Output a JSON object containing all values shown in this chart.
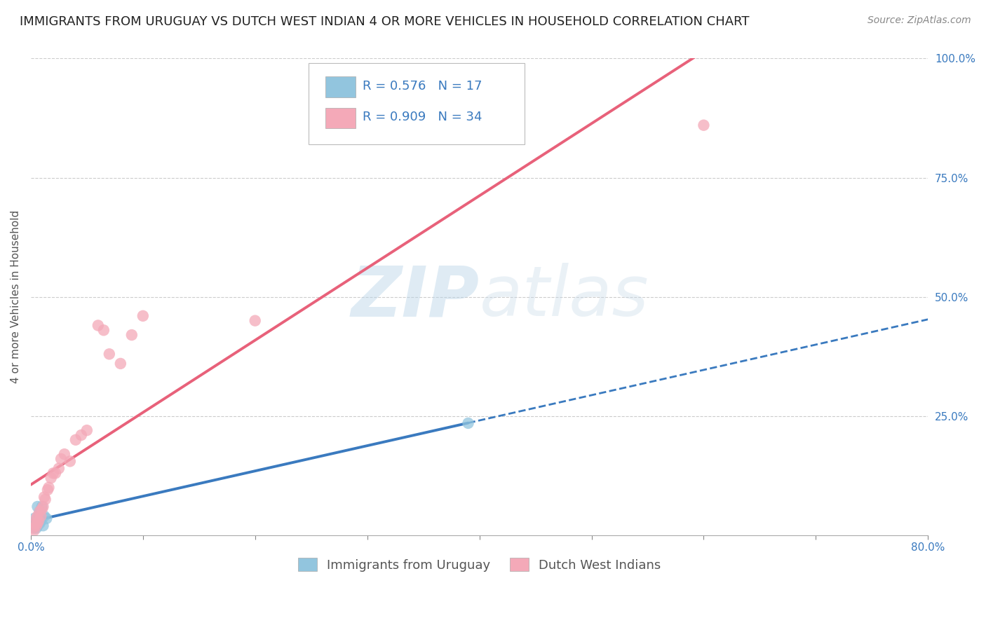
{
  "title": "IMMIGRANTS FROM URUGUAY VS DUTCH WEST INDIAN 4 OR MORE VEHICLES IN HOUSEHOLD CORRELATION CHART",
  "source": "Source: ZipAtlas.com",
  "ylabel": "4 or more Vehicles in Household",
  "xlim": [
    0.0,
    0.8
  ],
  "ylim": [
    0.0,
    1.0
  ],
  "xticks": [
    0.0,
    0.1,
    0.2,
    0.3,
    0.4,
    0.5,
    0.6,
    0.7,
    0.8
  ],
  "xticklabels": [
    "0.0%",
    "",
    "",
    "",
    "",
    "",
    "",
    "",
    "80.0%"
  ],
  "yticks": [
    0.0,
    0.25,
    0.5,
    0.75,
    1.0
  ],
  "yticklabels": [
    "",
    "25.0%",
    "50.0%",
    "75.0%",
    "100.0%"
  ],
  "blue_color": "#92c5de",
  "pink_color": "#f4a9b8",
  "blue_line_color": "#3a7abf",
  "pink_line_color": "#e8617a",
  "blue_r": 0.576,
  "blue_n": 17,
  "pink_r": 0.909,
  "pink_n": 34,
  "legend_label_blue": "Immigrants from Uruguay",
  "legend_label_pink": "Dutch West Indians",
  "watermark_zip": "ZIP",
  "watermark_atlas": "atlas",
  "background_color": "#ffffff",
  "grid_color": "#cccccc",
  "title_fontsize": 13,
  "axis_label_fontsize": 11,
  "tick_fontsize": 11,
  "legend_fontsize": 13,
  "blue_scatter_x": [
    0.002,
    0.003,
    0.003,
    0.004,
    0.005,
    0.005,
    0.006,
    0.006,
    0.007,
    0.008,
    0.008,
    0.009,
    0.01,
    0.011,
    0.012,
    0.014,
    0.39
  ],
  "blue_scatter_y": [
    0.02,
    0.035,
    0.015,
    0.025,
    0.03,
    0.015,
    0.02,
    0.06,
    0.04,
    0.025,
    0.05,
    0.03,
    0.06,
    0.02,
    0.04,
    0.035,
    0.235
  ],
  "pink_scatter_x": [
    0.002,
    0.003,
    0.004,
    0.005,
    0.005,
    0.006,
    0.006,
    0.007,
    0.008,
    0.009,
    0.01,
    0.011,
    0.012,
    0.013,
    0.015,
    0.016,
    0.018,
    0.02,
    0.022,
    0.025,
    0.027,
    0.03,
    0.035,
    0.04,
    0.045,
    0.05,
    0.06,
    0.065,
    0.07,
    0.08,
    0.09,
    0.1,
    0.2,
    0.6
  ],
  "pink_scatter_y": [
    0.015,
    0.01,
    0.025,
    0.02,
    0.035,
    0.025,
    0.04,
    0.03,
    0.05,
    0.04,
    0.055,
    0.06,
    0.08,
    0.075,
    0.095,
    0.1,
    0.12,
    0.13,
    0.13,
    0.14,
    0.16,
    0.17,
    0.155,
    0.2,
    0.21,
    0.22,
    0.44,
    0.43,
    0.38,
    0.36,
    0.42,
    0.46,
    0.45,
    0.86
  ]
}
